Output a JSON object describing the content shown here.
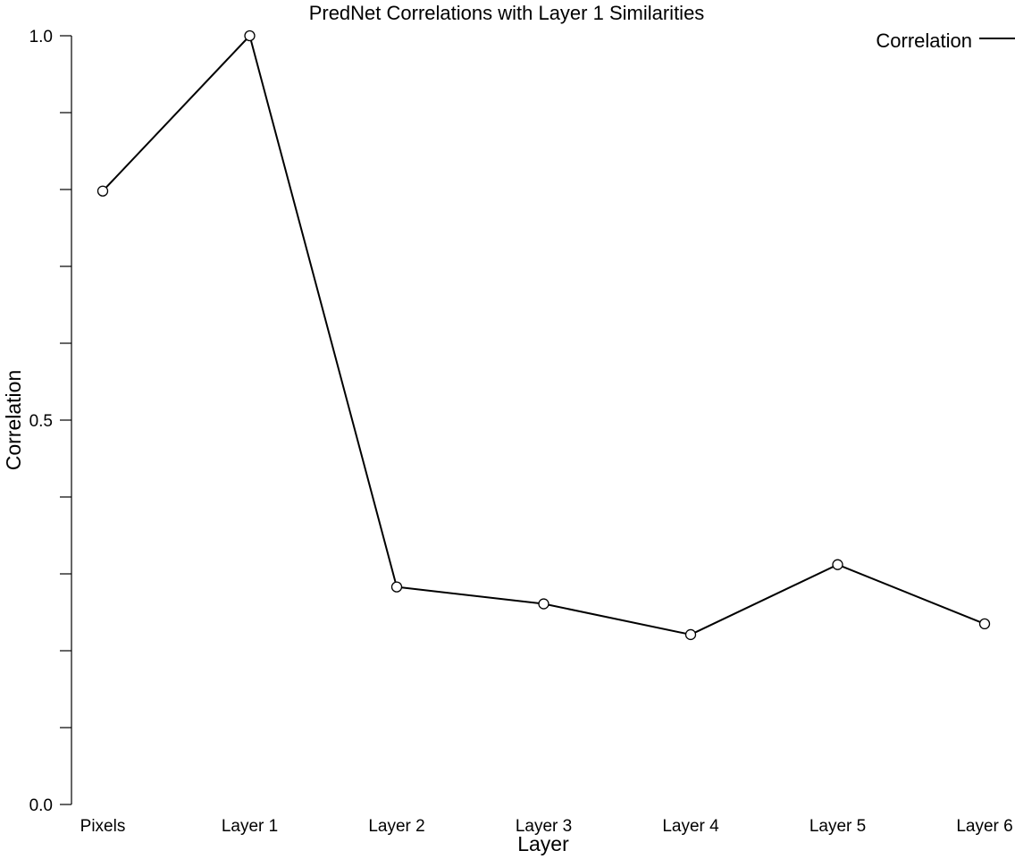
{
  "chart_data": {
    "type": "line",
    "title": "PredNet Correlations with Layer 1 Similarities",
    "xlabel": "Layer",
    "ylabel": "Correlation",
    "categories": [
      "Pixels",
      "Layer 1",
      "Layer 2",
      "Layer 3",
      "Layer 4",
      "Layer 5",
      "Layer 6"
    ],
    "series": [
      {
        "name": "Correlation",
        "values": [
          0.798,
          1.0,
          0.283,
          0.261,
          0.221,
          0.312,
          0.235
        ],
        "color": "#000000",
        "marker": "open-circle"
      }
    ],
    "ylim": [
      0.0,
      1.0
    ],
    "yticks": [
      {
        "value": 0.0,
        "label": "0.0"
      },
      {
        "value": 0.1,
        "label": ""
      },
      {
        "value": 0.2,
        "label": ""
      },
      {
        "value": 0.3,
        "label": ""
      },
      {
        "value": 0.4,
        "label": ""
      },
      {
        "value": 0.5,
        "label": "0.5"
      },
      {
        "value": 0.6,
        "label": ""
      },
      {
        "value": 0.7,
        "label": ""
      },
      {
        "value": 0.8,
        "label": ""
      },
      {
        "value": 0.9,
        "label": ""
      },
      {
        "value": 1.0,
        "label": "1.0"
      }
    ],
    "grid": false,
    "legend": {
      "position": "top-right",
      "entries": [
        "Correlation"
      ]
    }
  }
}
